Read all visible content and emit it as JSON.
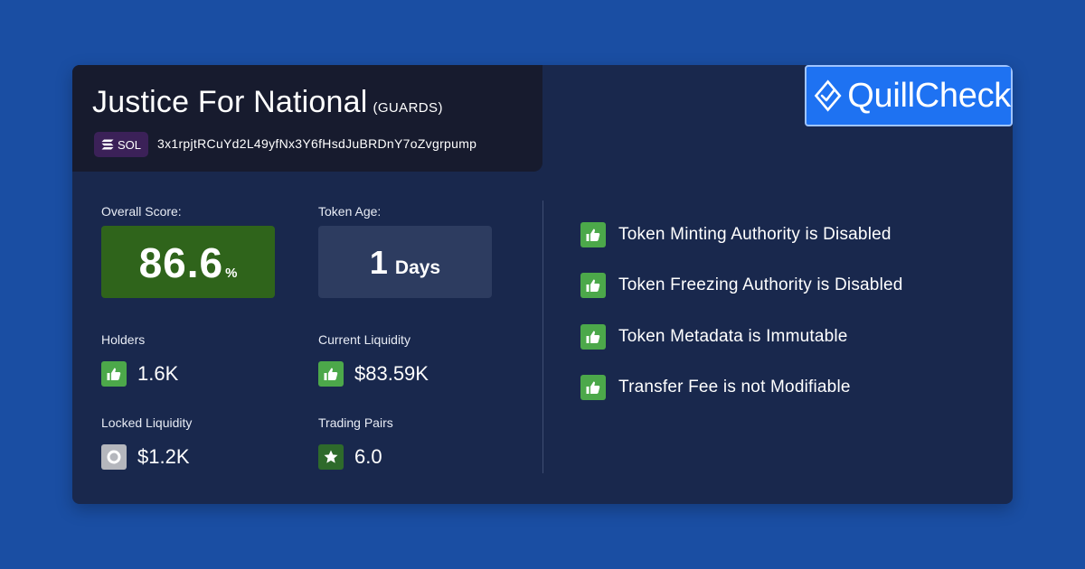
{
  "token": {
    "name": "Justice For National",
    "symbol": "(GUARDS)",
    "chain": "SOL",
    "address": "3x1rpjtRCuYd2L49yfNx3Y6fHsdJuBRDnY7oZvgrpump"
  },
  "brand": {
    "logo_text": "QuillCheck"
  },
  "stats": {
    "overall_score_label": "Overall Score:",
    "overall_score_value": "86.6",
    "overall_score_unit": "%",
    "token_age_label": "Token Age:",
    "token_age_value": "1",
    "token_age_unit": "Days",
    "holders_label": "Holders",
    "holders_value": "1.6K",
    "current_liquidity_label": "Current Liquidity",
    "current_liquidity_value": "$83.59K",
    "locked_liquidity_label": "Locked Liquidity",
    "locked_liquidity_value": "$1.2K",
    "trading_pairs_label": "Trading Pairs",
    "trading_pairs_value": "6.0"
  },
  "checks": [
    {
      "text": "Token Minting Authority is Disabled",
      "icon": "thumbs-up-icon"
    },
    {
      "text": "Token Freezing Authority is Disabled",
      "icon": "thumbs-up-icon"
    },
    {
      "text": "Token Metadata is Immutable",
      "icon": "thumbs-up-icon"
    },
    {
      "text": "Transfer Fee is not Modifiable",
      "icon": "thumbs-up-icon"
    }
  ],
  "colors": {
    "background": "#1a4ea3",
    "card": "#19284d",
    "title_panel": "#171b2e",
    "score_box": "#2f641b",
    "age_box": "#2d3c60",
    "positive_icon": "#4ca84a",
    "neutral_icon": "#b5b7bd",
    "star_icon": "#2e6a2b",
    "logo_bg": "#1e72f2",
    "chain_badge": "#3b2158"
  }
}
